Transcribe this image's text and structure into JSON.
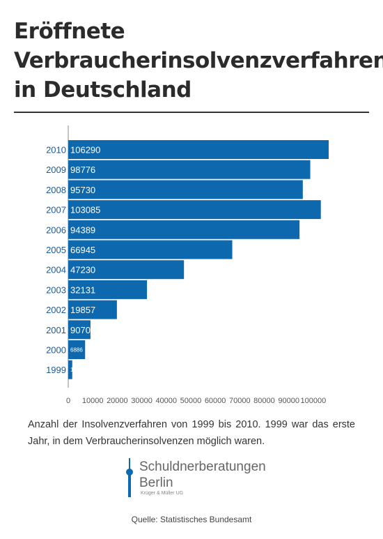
{
  "title": "Eröffnete Verbraucherinsolvenzverfahren in Deutschland",
  "caption": "Anzahl der Insolvenzverfahren von 1999 bis 2010. 1999 war das erste Jahr, in dem Verbraucherinsolvenzen möglich waren.",
  "logo": {
    "line1": "Schuldnerberatungen",
    "line2": "Berlin",
    "line3": "Krüger & Müller UG"
  },
  "source": "Quelle: Statistisches Bundesamt",
  "colors": {
    "bar": "#0e68ad",
    "label_year": "#1a5a9a",
    "axis": "#888888"
  },
  "chart_data": {
    "type": "bar",
    "orientation": "horizontal",
    "title": "",
    "xlabel": "",
    "ylabel": "",
    "categories": [
      "2010",
      "2009",
      "2008",
      "2007",
      "2006",
      "2005",
      "2004",
      "2003",
      "2002",
      "2001",
      "2000",
      "1999"
    ],
    "values": [
      106290,
      98776,
      95730,
      103085,
      94389,
      66945,
      47230,
      32131,
      19857,
      9070,
      6886,
      1634
    ],
    "xticks": [
      "0",
      "10000",
      "20000",
      "30000",
      "40000",
      "50000",
      "60000",
      "70000",
      "80000",
      "90000",
      "100000"
    ],
    "xlim": [
      0,
      108000
    ],
    "grid": false,
    "legend": "none"
  }
}
